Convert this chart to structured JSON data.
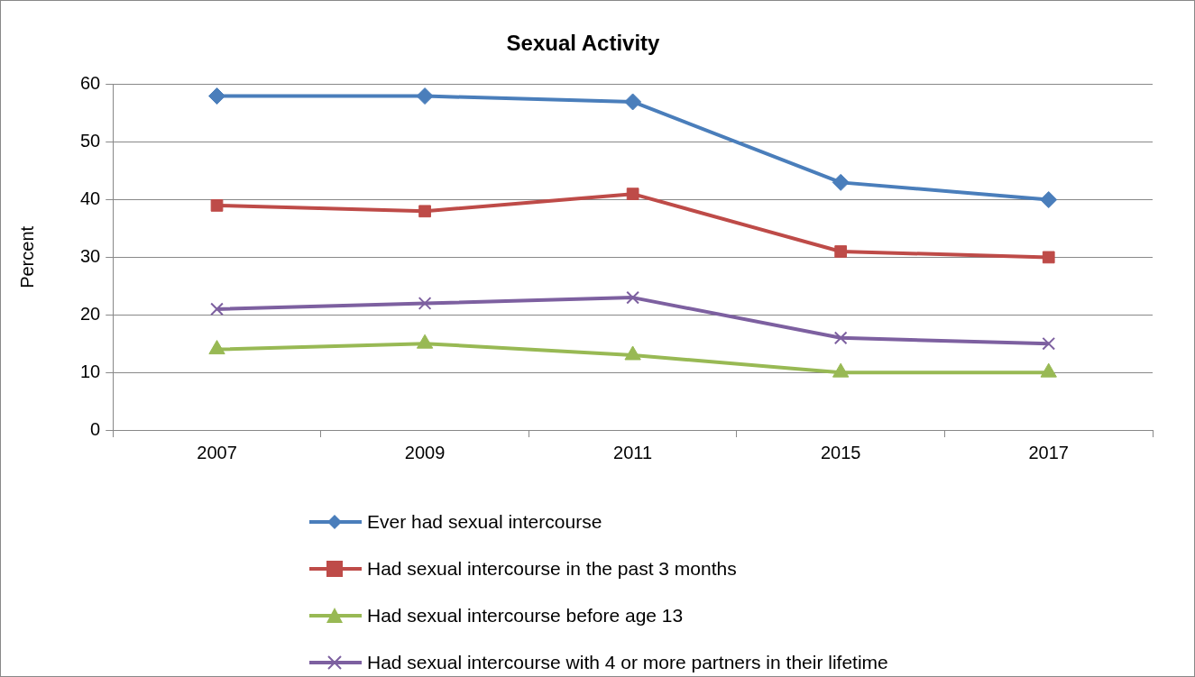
{
  "chart_data": {
    "type": "line",
    "title": "Sexual Activity",
    "ylabel": "Percent",
    "categories": [
      "2007",
      "2009",
      "2011",
      "2015",
      "2017"
    ],
    "series": [
      {
        "name": "Ever had sexual intercourse",
        "color": "#4a7ebb",
        "marker": "diamond",
        "values": [
          58,
          58,
          57,
          43,
          40
        ]
      },
      {
        "name": "Had sexual intercourse in the past 3 months",
        "color": "#be4b48",
        "marker": "square",
        "values": [
          39,
          38,
          41,
          31,
          30
        ]
      },
      {
        "name": "Had sexual intercourse before age 13",
        "color": "#98b954",
        "marker": "triangle",
        "values": [
          14,
          15,
          13,
          10,
          10
        ]
      },
      {
        "name": "Had sexual intercourse with 4 or more partners in their lifetime",
        "color": "#7d60a0",
        "marker": "cross",
        "values": [
          21,
          22,
          23,
          16,
          15
        ]
      }
    ],
    "ylim": [
      0,
      60
    ],
    "yticks": [
      0,
      10,
      20,
      30,
      40,
      50,
      60
    ],
    "grid": "y",
    "legend": "bottom",
    "line_style": "solid"
  }
}
